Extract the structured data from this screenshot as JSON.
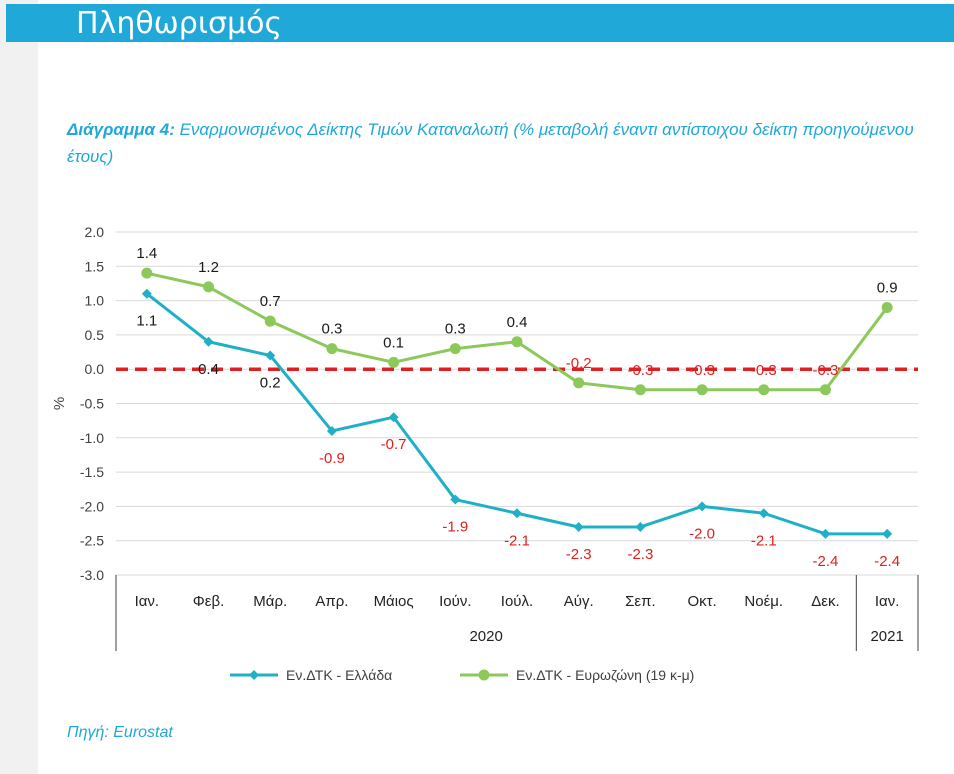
{
  "header": {
    "title": "Πληθωρισμός"
  },
  "caption": {
    "prefix": "Διάγραμμα 4:",
    "text": " Εναρμονισμένος Δείκτης Τιμών Καταναλωτή (% μεταβολή έναντι αντίστοιχου δείκτη προηγούμενου έτους)"
  },
  "source": "Πηγή: Eurostat",
  "chart_data": {
    "type": "line",
    "title": "Εναρμονισμένος Δείκτης Τιμών Καταναλωτή (% μεταβολή έναντι αντίστοιχου δείκτη προηγούμενου έτους)",
    "ylabel": "%",
    "ylim": [
      -3.0,
      2.0
    ],
    "ytick_step": 0.5,
    "yticks": [
      "2.0",
      "1.5",
      "1.0",
      "0.5",
      "0.0",
      "-0.5",
      "-1.0",
      "-1.5",
      "-2.0",
      "-2.5",
      "-3.0"
    ],
    "categories": [
      "Ιαν.",
      "Φεβ.",
      "Μάρ.",
      "Απρ.",
      "Μάιος",
      "Ιούν.",
      "Ιούλ.",
      "Αύγ.",
      "Σεπ.",
      "Οκτ.",
      "Νοέμ.",
      "Δεκ.",
      "Ιαν."
    ],
    "year_groups": [
      {
        "label": "2020",
        "count": 12
      },
      {
        "label": "2021",
        "count": 1
      }
    ],
    "zero_line": {
      "color": "#e02020",
      "style": "dashed"
    },
    "series": [
      {
        "name": "Εν.ΔΤΚ - Ελλάδα",
        "color": "#1fb0c8",
        "marker": "diamond",
        "values": [
          1.1,
          0.4,
          0.2,
          -0.9,
          -0.7,
          -1.9,
          -2.1,
          -2.3,
          -2.3,
          -2.0,
          -2.1,
          -2.4,
          -2.4
        ],
        "labels": [
          "1.1",
          "0.4",
          "0.2",
          "-0.9",
          "-0.7",
          "-1.9",
          "-2.1",
          "-2.3",
          "-2.3",
          "-2.0",
          "-2.1",
          "-2.4",
          "-2.4"
        ],
        "label_position": "below"
      },
      {
        "name": "Εν.ΔΤΚ - Ευρωζώνη (19 κ-μ)",
        "color": "#8cc85a",
        "marker": "circle",
        "values": [
          1.4,
          1.2,
          0.7,
          0.3,
          0.1,
          0.3,
          0.4,
          -0.2,
          -0.3,
          -0.3,
          -0.3,
          -0.3,
          0.9
        ],
        "labels": [
          "1.4",
          "1.2",
          "0.7",
          "0.3",
          "0.1",
          "0.3",
          "0.4",
          "-0.2",
          "-0.3",
          "-0.3",
          "-0.3",
          "-0.3",
          "0.9"
        ],
        "label_position": "above"
      }
    ],
    "label_colors": {
      "positive": "#1a1a1a",
      "negative": "#e02020"
    },
    "gridline_color": "#d9d9d9",
    "legend_position": "bottom"
  }
}
